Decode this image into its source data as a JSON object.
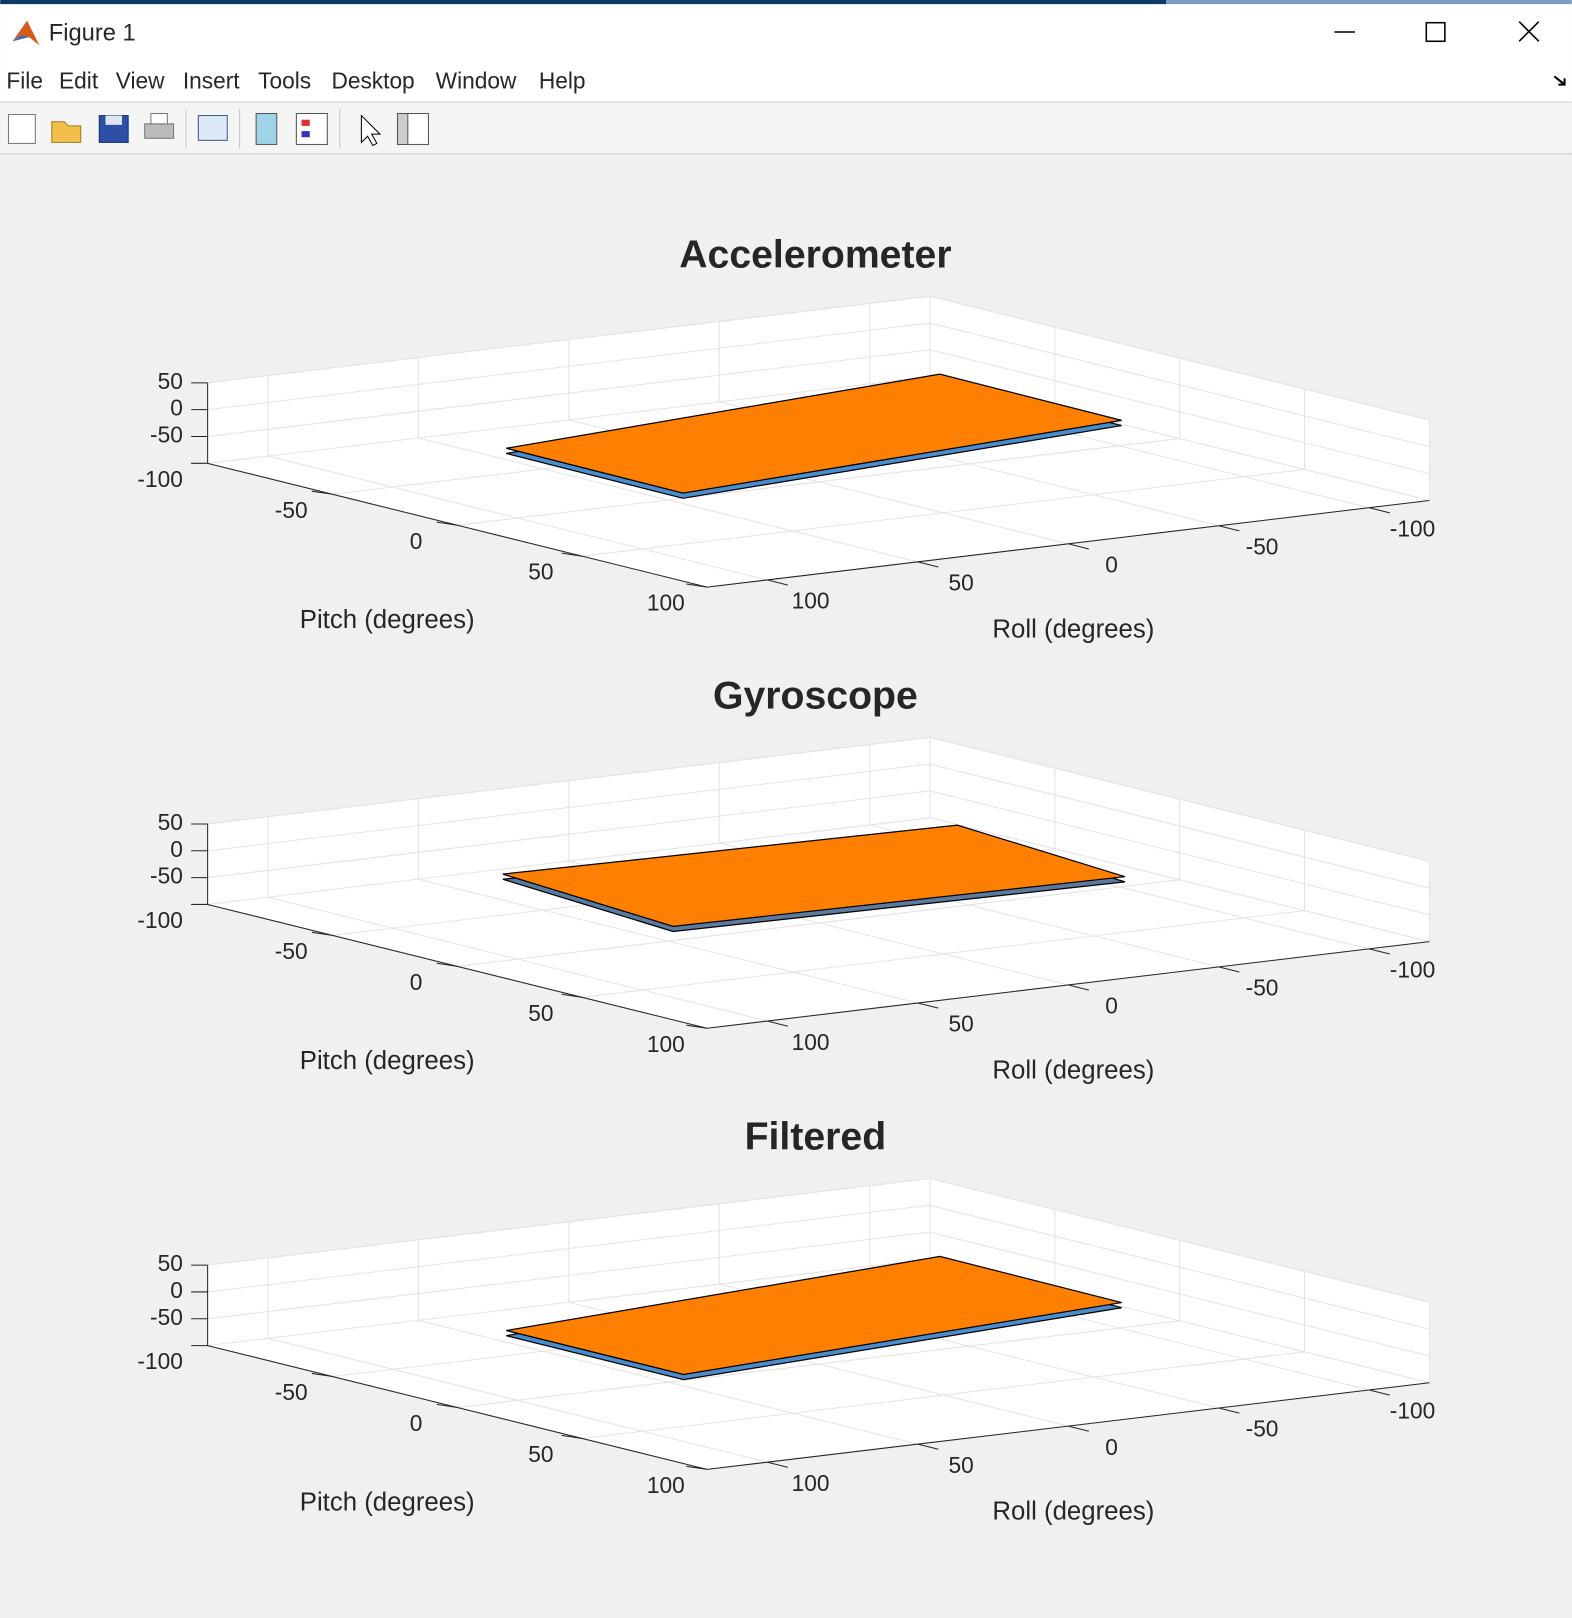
{
  "window": {
    "title": "Figure 1",
    "menu": [
      "File",
      "Edit",
      "View",
      "Insert",
      "Tools",
      "Desktop",
      "Window",
      "Help"
    ]
  },
  "chart_data": [
    {
      "type": "surface3d",
      "title": "Accelerometer",
      "xlabel": "Roll (degrees)",
      "ylabel": "Pitch (degrees)",
      "xlim": [
        -120,
        120
      ],
      "ylim": [
        -100,
        100
      ],
      "zlim": [
        -100,
        50
      ],
      "xticks": [
        -100,
        -50,
        0,
        50,
        100
      ],
      "yticks": [
        -50,
        0,
        50,
        100
      ],
      "zticks": [
        -100,
        -50,
        0,
        50
      ],
      "grid": true,
      "color": "#ff8000",
      "edge_color": "#4a8ccc",
      "vertices": {
        "x": [
          88,
          89,
          -75,
          -76
        ],
        "y": [
          -19,
          53,
          31,
          -43
        ],
        "z": [
          0,
          0,
          0,
          0
        ]
      }
    },
    {
      "type": "surface3d",
      "title": "Gyroscope",
      "xlabel": "Roll (degrees)",
      "ylabel": "Pitch (degrees)",
      "xlim": [
        -120,
        120
      ],
      "ylim": [
        -100,
        100
      ],
      "zlim": [
        -100,
        50
      ],
      "xticks": [
        -100,
        -50,
        0,
        50,
        100
      ],
      "yticks": [
        -50,
        0,
        50,
        100
      ],
      "zticks": [
        -100,
        -50,
        0,
        50
      ],
      "grid": true,
      "color": "#ff8000",
      "edge_color": "#5a7a9e",
      "vertices": {
        "x": [
          75,
          84,
          -62,
          -71
        ],
        "y": [
          -36,
          43,
          48,
          -30
        ],
        "z": [
          0,
          0,
          0,
          0
        ]
      }
    },
    {
      "type": "surface3d",
      "title": "Filtered",
      "xlabel": "Roll (degrees)",
      "ylabel": "Pitch (degrees)",
      "xlim": [
        -120,
        120
      ],
      "ylim": [
        -100,
        100
      ],
      "zlim": [
        -100,
        50
      ],
      "xticks": [
        -100,
        -50,
        0,
        50,
        100
      ],
      "yticks": [
        -50,
        0,
        50,
        100
      ],
      "zticks": [
        -100,
        -50,
        0,
        50
      ],
      "grid": true,
      "color": "#ff8000",
      "edge_color": "#4a8ccc",
      "vertices": {
        "x": [
          88,
          88,
          -75,
          -76
        ],
        "y": [
          -19,
          52,
          31,
          -43
        ],
        "z": [
          0,
          0,
          0,
          0
        ]
      }
    }
  ]
}
